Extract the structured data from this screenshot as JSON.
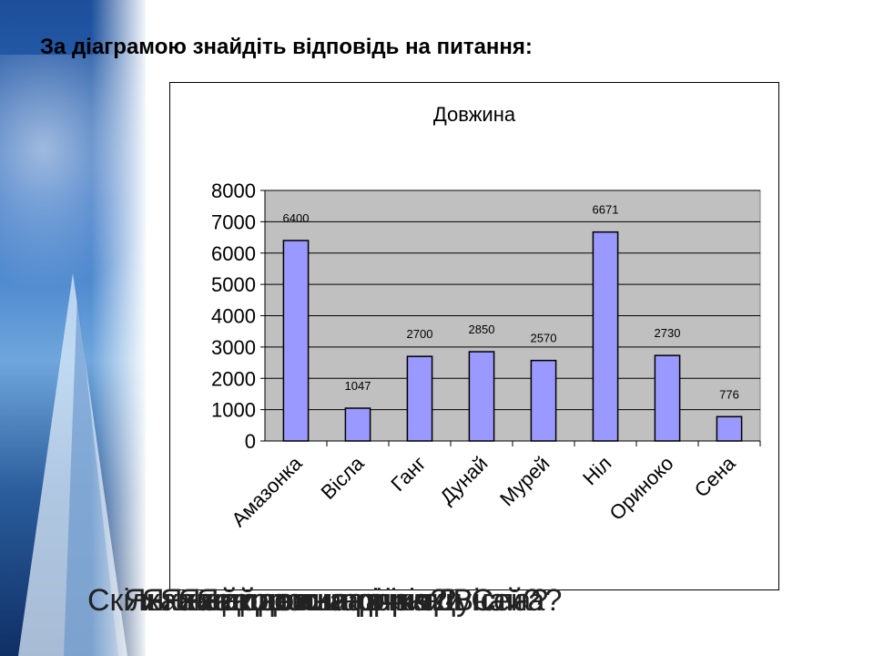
{
  "heading": "За діаграмою знайдіть відповідь на питання:",
  "chart_data": {
    "type": "bar",
    "title": "Довжина",
    "categories": [
      "Амазонка",
      "Вісла",
      "Ганг",
      "Дунай",
      "Мурей",
      "Ніл",
      "Ориноко",
      "Сена"
    ],
    "values": [
      6400,
      1047,
      2700,
      2850,
      2570,
      6671,
      2730,
      776
    ],
    "data_labels": [
      "6400",
      "1047",
      "2700",
      "2850",
      "2570",
      "6671",
      "2730",
      "776"
    ],
    "yticks": [
      "0",
      "1000",
      "2000",
      "3000",
      "4000",
      "5000",
      "6000",
      "7000",
      "8000"
    ],
    "ylim": [
      0,
      8000
    ],
    "grid": true,
    "legend": "none",
    "colors": {
      "bar_fill": "#9999ff",
      "bar_stroke": "#000000",
      "plot_bg": "#c0c0c0",
      "grid": "#000000"
    }
  },
  "questions_overlay": [
    "Скільки",
    "Яка найкоротша річка?",
    "Яка найдовша річка?",
    "Яка довжина річки Дунай?",
    "Яка довжина річки Вісла?",
    "Яка довжина річки Сена?"
  ]
}
